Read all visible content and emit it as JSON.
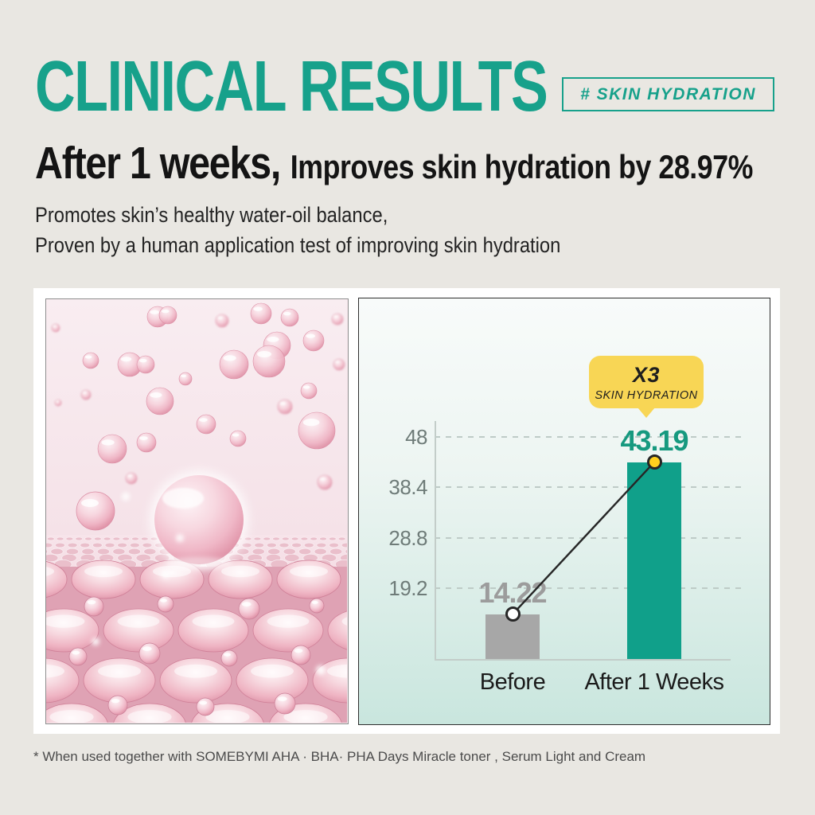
{
  "header": {
    "title": "CLINICAL RESULTS",
    "badge": "# SKIN HYDRATION"
  },
  "headline": {
    "strong": "After 1 weeks,",
    "rest": "Improves skin hydration by 28.97%"
  },
  "description": {
    "line1": "Promotes skin’s healthy water-oil balance,",
    "line2": "Proven by a human application test of improving skin hydration"
  },
  "callout": {
    "multiplier": "X3",
    "label": "SKIN HYDRATION"
  },
  "footnote": "* When used together with SOMEBYMI AHA · BHA· PHA Days Miracle toner , Serum Light and Cream",
  "chart_data": {
    "type": "bar",
    "categories": [
      "Before",
      "After 1 Weeks"
    ],
    "values": [
      14.22,
      43.19
    ],
    "value_labels": [
      "14.22",
      "43.19"
    ],
    "bar_colors": [
      "#a7a7a7",
      "#10a08a"
    ],
    "value_label_colors": [
      "#9c9c9c",
      "#16997f"
    ],
    "marker_colors": [
      "#ffffff",
      "#ffd01e"
    ],
    "yticks": [
      19.2,
      28.8,
      38.4,
      48
    ],
    "ylim": [
      5.7,
      48
    ],
    "grid": "horizontal-dashed",
    "legend": "none",
    "annotation": {
      "text": "X3 SKIN HYDRATION",
      "target": "After 1 Weeks"
    },
    "connector": "line-between-bar-tops"
  },
  "colors": {
    "accent_teal": "#17a18b",
    "bar_teal": "#10a08a",
    "bar_gray": "#a7a7a7",
    "callout_yellow": "#f8d655",
    "marker_yellow": "#ffd01e",
    "page_background": "#e9e7e2",
    "card_background": "#ffffff"
  }
}
